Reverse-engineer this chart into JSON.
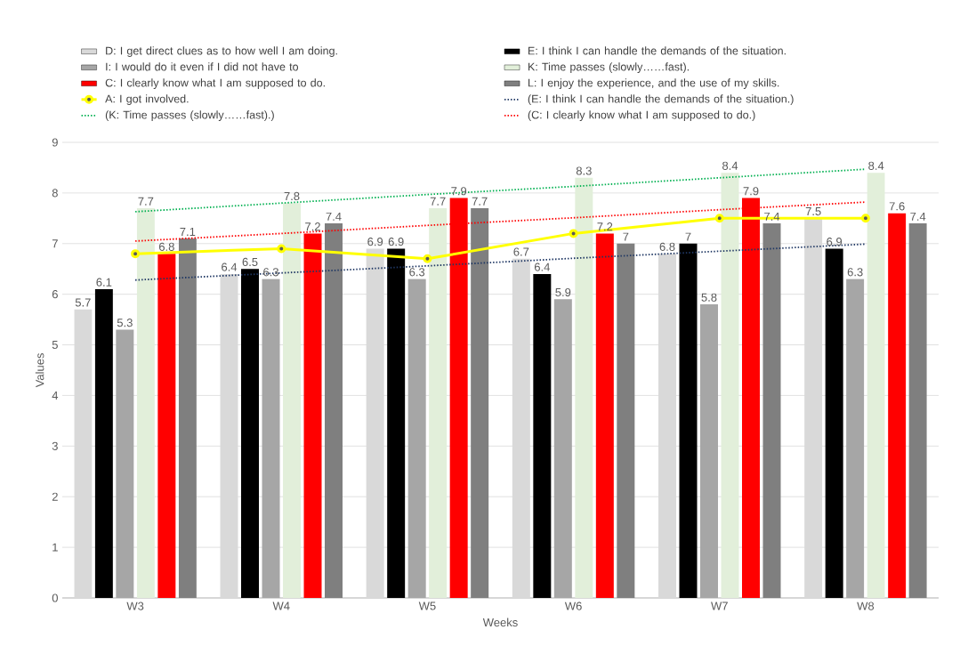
{
  "chart_data": {
    "type": "bar",
    "xlabel": "Weeks",
    "ylabel": "Values",
    "categories": [
      "W3",
      "W4",
      "W5",
      "W6",
      "W7",
      "W8"
    ],
    "ylim": [
      0,
      9
    ],
    "yticks": [
      0,
      1,
      2,
      3,
      4,
      5,
      6,
      7,
      8,
      9
    ],
    "grid": "y",
    "legend": "top",
    "series": [
      {
        "name": "D: I get direct clues as to how well I am doing.",
        "color": "#d9d9d9",
        "values": [
          5.7,
          6.4,
          6.9,
          6.7,
          6.8,
          7.5
        ],
        "data_labels": true
      },
      {
        "name": "E: I think I can handle the demands of the situation.",
        "color": "#000000",
        "values": [
          6.1,
          6.5,
          6.9,
          6.4,
          7,
          6.9
        ],
        "data_labels": true
      },
      {
        "name": "I: I would do it even if I did not have to",
        "color": "#a6a6a6",
        "values": [
          5.3,
          6.3,
          6.3,
          5.9,
          5.8,
          6.3
        ],
        "data_labels": true
      },
      {
        "name": "K: Time passes (slowly……fast).",
        "color": "#e2efda",
        "values": [
          7.7,
          7.8,
          7.7,
          8.3,
          8.4,
          8.4
        ],
        "data_labels": true
      },
      {
        "name": "C: I clearly know what I am supposed to do.",
        "color": "#ff0000",
        "values": [
          6.8,
          7.2,
          7.9,
          7.2,
          7.9,
          7.6
        ],
        "data_labels": true
      },
      {
        "name": "L: I enjoy the experience, and the use of my skills.",
        "color": "#7f7f7f",
        "values": [
          7.1,
          7.4,
          7.7,
          7,
          7.4,
          7.4
        ],
        "data_labels": true
      },
      {
        "name": "A: I got involved.",
        "type": "line",
        "color": "#ffff00",
        "marker": "circle",
        "line_style": "solid",
        "values": [
          6.8,
          6.9,
          6.7,
          7.2,
          7.5,
          7.5
        ]
      },
      {
        "name": "(E: I think I can handle the demands of the situation.)",
        "type": "line",
        "color": "#203864",
        "line_style": "dotted",
        "values": [
          6.28,
          6.42,
          6.56,
          6.71,
          6.85,
          6.99
        ]
      },
      {
        "name": "(K: Time passes (slowly……fast).)",
        "type": "line",
        "color": "#00b050",
        "line_style": "dotted",
        "values": [
          7.63,
          7.8,
          7.97,
          8.13,
          8.3,
          8.47
        ]
      },
      {
        "name": "(C: I clearly know what I am supposed to do.)",
        "type": "line",
        "color": "#ff0000",
        "line_style": "dotted",
        "values": [
          7.05,
          7.2,
          7.36,
          7.51,
          7.67,
          7.82
        ]
      }
    ]
  }
}
